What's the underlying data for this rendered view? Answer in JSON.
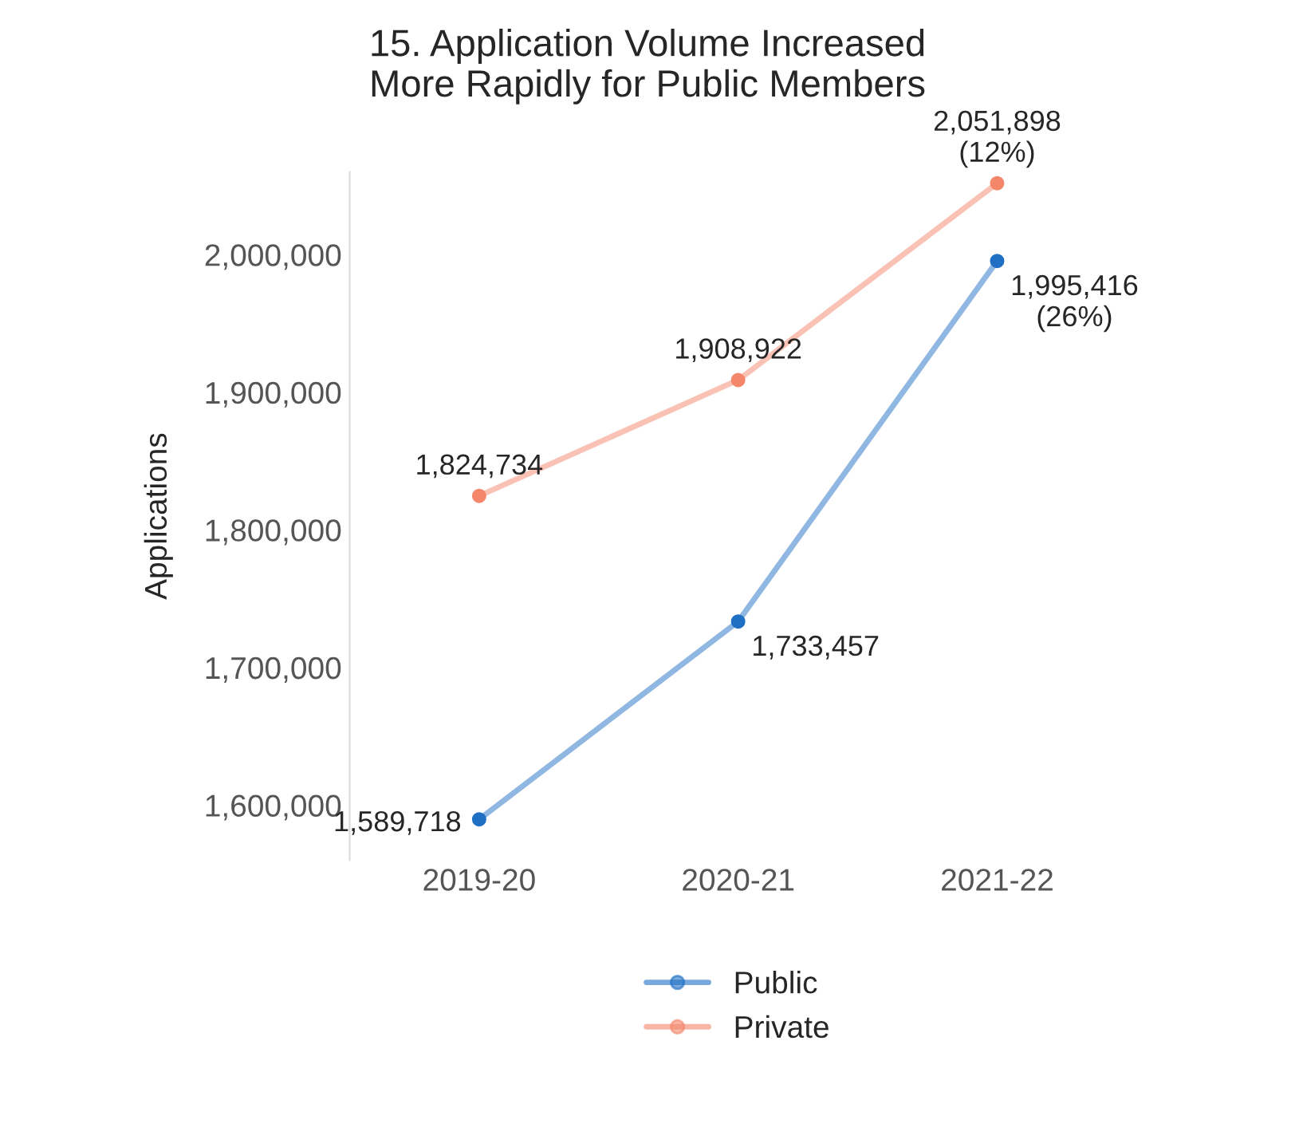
{
  "chart_data": {
    "type": "line",
    "title": "15. Application Volume Increased\nMore Rapidly for Public Members",
    "ylabel": "Applications",
    "categories": [
      "2019-20",
      "2020-21",
      "2021-22"
    ],
    "series": [
      {
        "name": "Public",
        "color": "#1f6fc4",
        "values": [
          1589718,
          1733457,
          1995416
        ],
        "value_labels": [
          "1,589,718",
          "1,733,457",
          "1,995,416\n(26%)"
        ]
      },
      {
        "name": "Private",
        "color": "#f4866a",
        "values": [
          1824734,
          1908922,
          2051898
        ],
        "value_labels": [
          "1,824,734",
          "1,908,922",
          "2,051,898\n(12%)"
        ]
      }
    ],
    "yticks": [
      {
        "value": 1600000,
        "label": "1,600,000"
      },
      {
        "value": 1700000,
        "label": "1,700,000"
      },
      {
        "value": 1800000,
        "label": "1,800,000"
      },
      {
        "value": 1900000,
        "label": "1,900,000"
      },
      {
        "value": 2000000,
        "label": "2,000,000"
      }
    ],
    "ylim": [
      1560000,
      2060000
    ],
    "grid": false,
    "legend": "bottom",
    "marker": "circle",
    "line_style": "solid"
  }
}
